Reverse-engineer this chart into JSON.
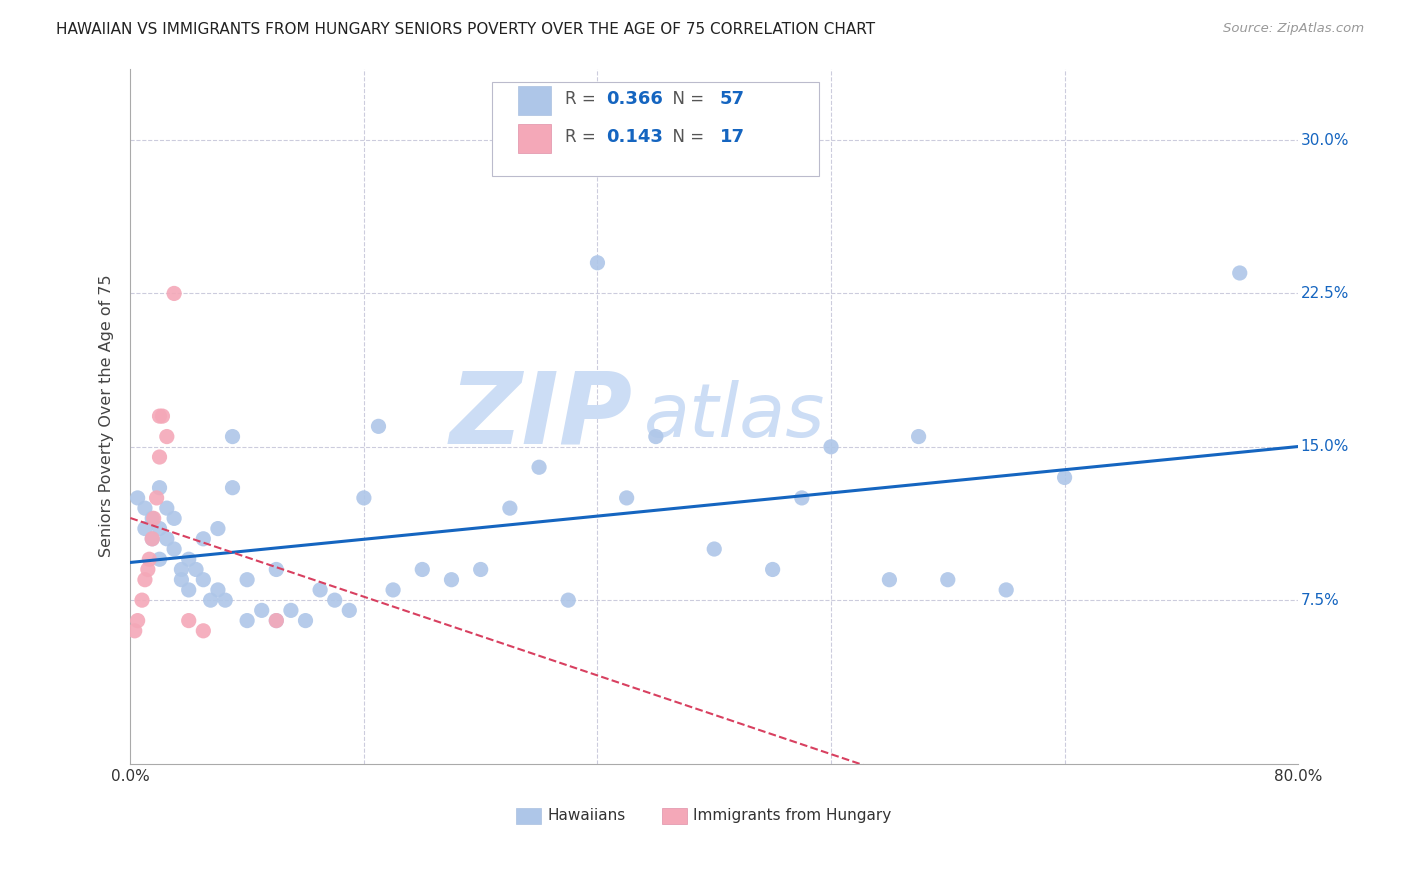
{
  "title": "HAWAIIAN VS IMMIGRANTS FROM HUNGARY SENIORS POVERTY OVER THE AGE OF 75 CORRELATION CHART",
  "source": "Source: ZipAtlas.com",
  "ylabel": "Seniors Poverty Over the Age of 75",
  "xlim": [
    0.0,
    0.8
  ],
  "ylim": [
    -0.005,
    0.335
  ],
  "yticks": [
    0.075,
    0.15,
    0.225,
    0.3
  ],
  "ytick_labels": [
    "7.5%",
    "15.0%",
    "22.5%",
    "30.0%"
  ],
  "xticks": [
    0.0,
    0.16,
    0.32,
    0.48,
    0.64,
    0.8
  ],
  "xtick_labels": [
    "0.0%",
    "",
    "",
    "",
    "",
    "80.0%"
  ],
  "hawaiian_color": "#aec6e8",
  "hungary_color": "#f4a8b8",
  "trend_hawaiian_color": "#1565c0",
  "trend_hungary_color": "#d84060",
  "background_color": "#ffffff",
  "grid_color": "#ccccdd",
  "R_hawaiian": 0.366,
  "N_hawaiian": 57,
  "R_hungary": 0.143,
  "N_hungary": 17,
  "hawaiians_x": [
    0.005,
    0.01,
    0.01,
    0.015,
    0.015,
    0.02,
    0.02,
    0.02,
    0.025,
    0.025,
    0.03,
    0.03,
    0.035,
    0.035,
    0.04,
    0.04,
    0.045,
    0.05,
    0.05,
    0.055,
    0.06,
    0.06,
    0.065,
    0.07,
    0.07,
    0.08,
    0.08,
    0.09,
    0.1,
    0.1,
    0.11,
    0.12,
    0.13,
    0.14,
    0.15,
    0.16,
    0.17,
    0.18,
    0.2,
    0.22,
    0.24,
    0.26,
    0.28,
    0.3,
    0.32,
    0.34,
    0.36,
    0.4,
    0.44,
    0.46,
    0.48,
    0.52,
    0.54,
    0.56,
    0.6,
    0.64,
    0.76
  ],
  "hawaiians_y": [
    0.125,
    0.12,
    0.11,
    0.115,
    0.105,
    0.13,
    0.11,
    0.095,
    0.12,
    0.105,
    0.115,
    0.1,
    0.09,
    0.085,
    0.095,
    0.08,
    0.09,
    0.105,
    0.085,
    0.075,
    0.11,
    0.08,
    0.075,
    0.155,
    0.13,
    0.085,
    0.065,
    0.07,
    0.065,
    0.09,
    0.07,
    0.065,
    0.08,
    0.075,
    0.07,
    0.125,
    0.16,
    0.08,
    0.09,
    0.085,
    0.09,
    0.12,
    0.14,
    0.075,
    0.24,
    0.125,
    0.155,
    0.1,
    0.09,
    0.125,
    0.15,
    0.085,
    0.155,
    0.085,
    0.08,
    0.135,
    0.235
  ],
  "hungary_x": [
    0.003,
    0.005,
    0.008,
    0.01,
    0.012,
    0.013,
    0.015,
    0.016,
    0.018,
    0.02,
    0.02,
    0.022,
    0.025,
    0.03,
    0.04,
    0.05,
    0.1
  ],
  "hungary_y": [
    0.06,
    0.065,
    0.075,
    0.085,
    0.09,
    0.095,
    0.105,
    0.115,
    0.125,
    0.145,
    0.165,
    0.165,
    0.155,
    0.225,
    0.065,
    0.06,
    0.065
  ],
  "watermark_line1": "ZIP",
  "watermark_line2": "atlas",
  "watermark_color": "#ccddf5",
  "yaxis_right": true,
  "yaxis_tick_color": "#1565c0"
}
